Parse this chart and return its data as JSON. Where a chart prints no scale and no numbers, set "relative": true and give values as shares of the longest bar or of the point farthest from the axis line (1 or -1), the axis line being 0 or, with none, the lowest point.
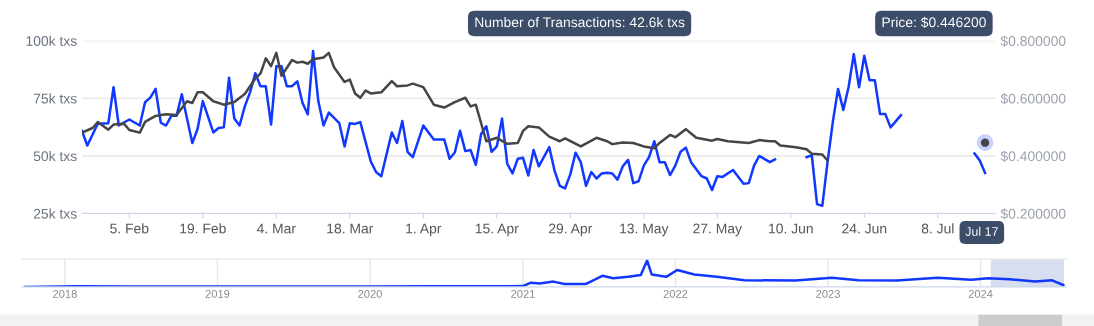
{
  "chart_data": [
    {
      "type": "line",
      "xlim": [
        "2024-01-27",
        "2024-07-19"
      ],
      "xticks": [
        {
          "value": "2024-02-05",
          "label": "5. Feb"
        },
        {
          "value": "2024-02-19",
          "label": "19. Feb"
        },
        {
          "value": "2024-03-04",
          "label": "4. Mar"
        },
        {
          "value": "2024-03-18",
          "label": "18. Mar"
        },
        {
          "value": "2024-04-01",
          "label": "1. Apr"
        },
        {
          "value": "2024-04-15",
          "label": "15. Apr"
        },
        {
          "value": "2024-04-29",
          "label": "29. Apr"
        },
        {
          "value": "2024-05-13",
          "label": "13. May"
        },
        {
          "value": "2024-05-27",
          "label": "27. May"
        },
        {
          "value": "2024-06-10",
          "label": "10. Jun"
        },
        {
          "value": "2024-06-24",
          "label": "24. Jun"
        },
        {
          "value": "2024-07-08",
          "label": "8. Jul"
        }
      ],
      "ylim": [
        25000,
        100000
      ],
      "yticks": [
        {
          "value": 25000,
          "label": "25k txs"
        },
        {
          "value": 50000,
          "label": "50k txs"
        },
        {
          "value": 75000,
          "label": "75k txs"
        },
        {
          "value": 100000,
          "label": "100k txs"
        }
      ],
      "y2lim": [
        0.2,
        0.8
      ],
      "y2ticks": [
        {
          "value": 0.2,
          "label": "$0.200000"
        },
        {
          "value": 0.4,
          "label": "$0.400000"
        },
        {
          "value": 0.6,
          "label": "$0.600000"
        },
        {
          "value": 0.8,
          "label": "$0.800000"
        }
      ],
      "grid": "y",
      "series": [
        {
          "color": "#1038ff",
          "axis": "y",
          "x": [
            "2024-01-27",
            "2024-01-28",
            "2024-01-30",
            "2024-02-01",
            "2024-02-02",
            "2024-02-03",
            "2024-02-05",
            "2024-02-07",
            "2024-02-08",
            "2024-02-09",
            "2024-02-10",
            "2024-02-11",
            "2024-02-12",
            "2024-02-13",
            "2024-02-14",
            "2024-02-15",
            "2024-02-17",
            "2024-02-18",
            "2024-02-19",
            "2024-02-21",
            "2024-02-22",
            "2024-02-23",
            "2024-02-24",
            "2024-02-25",
            "2024-02-26",
            "2024-02-27",
            "2024-02-28",
            "2024-02-29",
            "2024-03-01",
            "2024-03-02",
            "2024-03-03",
            "2024-03-04",
            "2024-03-05",
            "2024-03-06",
            "2024-03-07",
            "2024-03-08",
            "2024-03-09",
            "2024-03-10",
            "2024-03-11",
            "2024-03-12",
            "2024-03-13",
            "2024-03-14",
            "2024-03-16",
            "2024-03-17",
            "2024-03-18",
            "2024-03-19",
            "2024-03-20",
            "2024-03-22",
            "2024-03-23",
            "2024-03-24",
            "2024-03-26",
            "2024-03-27",
            "2024-03-28",
            "2024-03-29",
            "2024-03-30",
            "2024-04-01",
            "2024-04-03",
            "2024-04-05",
            "2024-04-06",
            "2024-04-07",
            "2024-04-08",
            "2024-04-09",
            "2024-04-10",
            "2024-04-11",
            "2024-04-12",
            "2024-04-13",
            "2024-04-14",
            "2024-04-15",
            "2024-04-16",
            "2024-04-17",
            "2024-04-18",
            "2024-04-19",
            "2024-04-20",
            "2024-04-21",
            "2024-04-22",
            "2024-04-23",
            "2024-04-25",
            "2024-04-26",
            "2024-04-27",
            "2024-04-28",
            "2024-04-29",
            "2024-04-30",
            "2024-05-01",
            "2024-05-02",
            "2024-05-03",
            "2024-05-04",
            "2024-05-05",
            "2024-05-06",
            "2024-05-07",
            "2024-05-08",
            "2024-05-09",
            "2024-05-10",
            "2024-05-11",
            "2024-05-12",
            "2024-05-13",
            "2024-05-14",
            "2024-05-15",
            "2024-05-16",
            "2024-05-17",
            "2024-05-18",
            "2024-05-19",
            "2024-05-20",
            "2024-05-21",
            "2024-05-22",
            "2024-05-24",
            "2024-05-25",
            "2024-05-26",
            "2024-05-27",
            "2024-05-28",
            "2024-05-30",
            "2024-06-01",
            "2024-06-02",
            "2024-06-03",
            "2024-06-04",
            "2024-06-06",
            "2024-06-07",
            "2024-06-08",
            "2024-06-13",
            "2024-06-14",
            "2024-06-15",
            "2024-06-16",
            "2024-06-17",
            "2024-06-18",
            "2024-06-19",
            "2024-06-20",
            "2024-06-21",
            "2024-06-22",
            "2024-06-23",
            "2024-06-24",
            "2024-06-25",
            "2024-06-26",
            "2024-06-27",
            "2024-06-28",
            "2024-06-29",
            "2024-07-01",
            "2024-07-02",
            "2024-07-15",
            "2024-07-16",
            "2024-07-17"
          ],
          "values": [
            60900,
            54500,
            64000,
            64200,
            79800,
            63200,
            65800,
            63200,
            73300,
            75300,
            79100,
            64400,
            63200,
            67400,
            67400,
            76800,
            55600,
            61700,
            73800,
            60200,
            62100,
            62400,
            83900,
            66200,
            63200,
            71500,
            77600,
            85900,
            80200,
            80200,
            63600,
            88900,
            88900,
            80300,
            80300,
            82400,
            73000,
            68000,
            95500,
            73800,
            63200,
            68800,
            64200,
            54100,
            64200,
            63900,
            64700,
            47600,
            43000,
            41200,
            60200,
            55600,
            65200,
            51800,
            49500,
            63200,
            57100,
            57100,
            48800,
            51500,
            60900,
            52100,
            52600,
            46100,
            59400,
            62900,
            51800,
            54100,
            66200,
            46500,
            42400,
            48800,
            49200,
            41500,
            52600,
            45500,
            53800,
            43600,
            37000,
            35900,
            42000,
            51400,
            47300,
            37000,
            43000,
            40200,
            42400,
            42700,
            42400,
            39700,
            45500,
            48300,
            38200,
            39000,
            45800,
            49500,
            56400,
            47300,
            47300,
            41700,
            45800,
            51800,
            53600,
            47300,
            41200,
            40200,
            35200,
            41200,
            40900,
            43900,
            37900,
            38200,
            45800,
            50000,
            47300,
            48500,
            null,
            49500,
            50300,
            29100,
            28300,
            47300,
            64700,
            79100,
            70000,
            79800,
            94200,
            79800,
            93500,
            82900,
            82900,
            68200,
            68200,
            62400,
            67700,
            null,
            51100,
            48000,
            42600
          ]
        },
        {
          "color": "#454545",
          "axis": "y2",
          "x": [
            "2024-01-27",
            "2024-01-29",
            "2024-01-30",
            "2024-02-01",
            "2024-02-02",
            "2024-02-04",
            "2024-02-05",
            "2024-02-07",
            "2024-02-08",
            "2024-02-10",
            "2024-02-12",
            "2024-02-14",
            "2024-02-16",
            "2024-02-17",
            "2024-02-18",
            "2024-02-19",
            "2024-02-21",
            "2024-02-23",
            "2024-02-25",
            "2024-02-27",
            "2024-02-29",
            "2024-03-01",
            "2024-03-02",
            "2024-03-03",
            "2024-03-04",
            "2024-03-05",
            "2024-03-07",
            "2024-03-08",
            "2024-03-09",
            "2024-03-10",
            "2024-03-11",
            "2024-03-13",
            "2024-03-14",
            "2024-03-15",
            "2024-03-17",
            "2024-03-18",
            "2024-03-19",
            "2024-03-20",
            "2024-03-21",
            "2024-03-22",
            "2024-03-24",
            "2024-03-26",
            "2024-03-27",
            "2024-03-29",
            "2024-03-30",
            "2024-04-01",
            "2024-04-03",
            "2024-04-05",
            "2024-04-07",
            "2024-04-09",
            "2024-04-10",
            "2024-04-11",
            "2024-04-13",
            "2024-04-15",
            "2024-04-17",
            "2024-04-19",
            "2024-04-20",
            "2024-04-21",
            "2024-04-23",
            "2024-04-25",
            "2024-04-27",
            "2024-04-28",
            "2024-05-01",
            "2024-05-04",
            "2024-05-06",
            "2024-05-07",
            "2024-05-09",
            "2024-05-11",
            "2024-05-13",
            "2024-05-15",
            "2024-05-16",
            "2024-05-18",
            "2024-05-19",
            "2024-05-21",
            "2024-05-23",
            "2024-05-26",
            "2024-05-27",
            "2024-05-29",
            "2024-06-02",
            "2024-06-04",
            "2024-06-06",
            "2024-06-07",
            "2024-06-08",
            "2024-06-11",
            "2024-06-13",
            "2024-06-14",
            "2024-06-16",
            "2024-06-17",
            "2024-06-18",
            "2024-07-17"
          ],
          "values": [
            0.481,
            0.497,
            0.518,
            0.491,
            0.509,
            0.512,
            0.49,
            0.481,
            0.518,
            0.539,
            0.545,
            0.542,
            0.59,
            0.584,
            0.621,
            0.621,
            0.59,
            0.578,
            0.587,
            0.615,
            0.669,
            0.687,
            0.739,
            0.712,
            0.758,
            0.678,
            0.733,
            0.724,
            0.727,
            0.72,
            0.736,
            0.742,
            0.758,
            0.708,
            0.657,
            0.665,
            0.617,
            0.602,
            0.627,
            0.617,
            0.621,
            0.66,
            0.642,
            0.645,
            0.651,
            0.639,
            0.578,
            0.568,
            0.587,
            0.602,
            0.572,
            0.578,
            0.451,
            0.463,
            0.442,
            0.445,
            0.487,
            0.503,
            0.499,
            0.467,
            0.451,
            0.461,
            0.433,
            0.463,
            0.451,
            0.441,
            0.447,
            0.445,
            0.433,
            0.427,
            0.445,
            0.473,
            0.465,
            0.493,
            0.463,
            0.453,
            0.459,
            0.451,
            0.445,
            0.455,
            0.451,
            0.451,
            0.436,
            0.43,
            0.423,
            0.408,
            0.405,
            0.384,
            null,
            0.446
          ]
        }
      ],
      "annotations": [
        "Price: $0.446200",
        "Number of Transactions: 42.6k txs",
        "Jul 17"
      ]
    },
    {
      "type": "line",
      "relative": true,
      "xlim": [
        "2017-09-20",
        "2024-07-25"
      ],
      "xticks": [
        {
          "value": "2018-01-01",
          "label": "2018"
        },
        {
          "value": "2019-01-01",
          "label": "2019"
        },
        {
          "value": "2020-01-01",
          "label": "2020"
        },
        {
          "value": "2021-01-01",
          "label": "2021"
        },
        {
          "value": "2022-01-01",
          "label": "2022"
        },
        {
          "value": "2023-01-01",
          "label": "2023"
        },
        {
          "value": "2024-01-01",
          "label": "2024"
        }
      ],
      "grid": "x",
      "bands": [
        {
          "axis": "x",
          "from": "2024-01-27",
          "to": "2024-07-17",
          "color": "#ccd6eb"
        }
      ],
      "series": [
        {
          "color": "#1038ff",
          "x": [
            "2017-09-28",
            "2018-02-01",
            "2018-06-01",
            "2019-01-01",
            "2019-06-01",
            "2020-01-01",
            "2020-06-01",
            "2020-12-01",
            "2021-01-01",
            "2021-01-20",
            "2021-02-10",
            "2021-03-15",
            "2021-04-10",
            "2021-06-01",
            "2021-07-10",
            "2021-08-05",
            "2021-09-10",
            "2021-10-10",
            "2021-10-25",
            "2021-11-05",
            "2021-12-10",
            "2022-01-05",
            "2022-02-15",
            "2022-04-10",
            "2022-06-15",
            "2022-10-15",
            "2023-01-10",
            "2023-03-15",
            "2023-06-15",
            "2023-09-20",
            "2023-12-10",
            "2024-01-20",
            "2024-03-10",
            "2024-05-10",
            "2024-06-20",
            "2024-07-17"
          ],
          "values": [
            0.0,
            0.02,
            0.01,
            0.01,
            0.01,
            0.01,
            0.02,
            0.02,
            0.03,
            0.16,
            0.13,
            0.2,
            0.11,
            0.11,
            0.42,
            0.33,
            0.38,
            0.45,
            1.0,
            0.47,
            0.38,
            0.64,
            0.47,
            0.38,
            0.25,
            0.24,
            0.35,
            0.25,
            0.24,
            0.35,
            0.27,
            0.33,
            0.29,
            0.2,
            0.25,
            0.07
          ]
        }
      ]
    }
  ]
}
